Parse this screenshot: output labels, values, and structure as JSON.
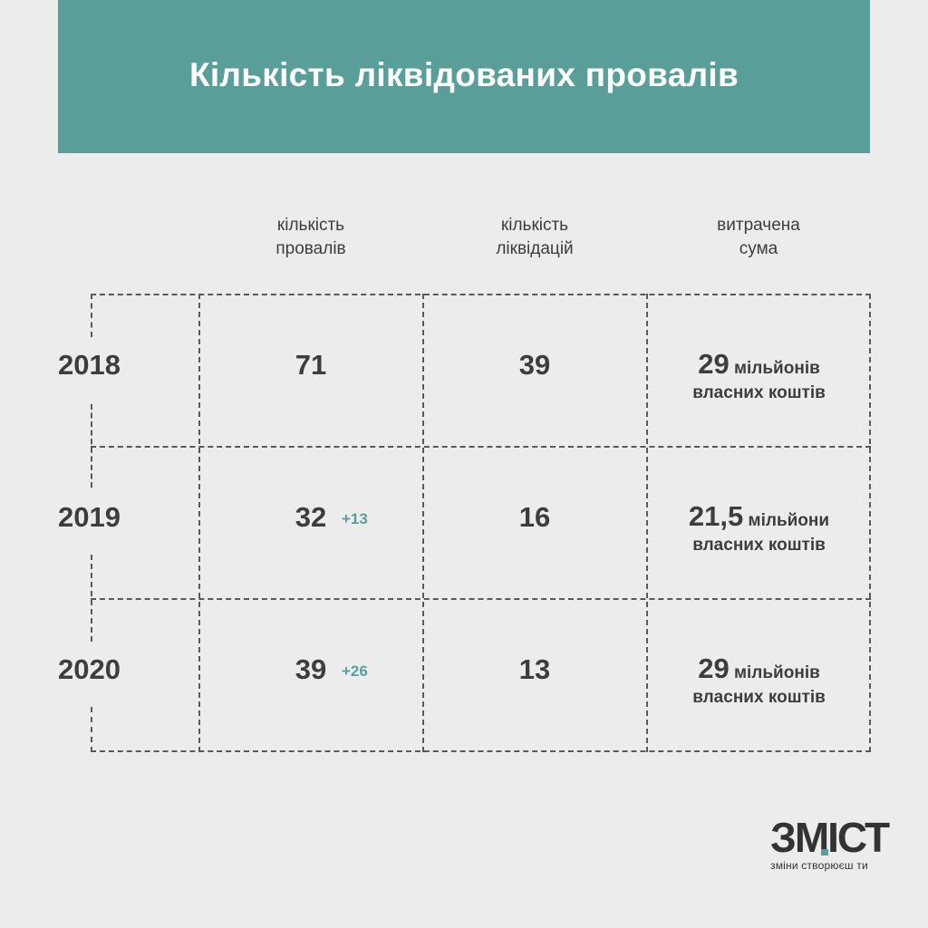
{
  "title": "Кількість ліквідованих провалів",
  "columns": [
    {
      "line1": "кількість",
      "line2": "провалів"
    },
    {
      "line1": "кількість",
      "line2": "ліквідацій"
    },
    {
      "line1": "витрачена",
      "line2": "сума"
    }
  ],
  "rows": [
    {
      "year": "2018",
      "failures": "71",
      "failures_delta": "",
      "liquidations": "39",
      "sum_value": "29",
      "sum_unit": "мільйонів",
      "sum_note": "власних коштів"
    },
    {
      "year": "2019",
      "failures": "32",
      "failures_delta": "+13",
      "liquidations": "16",
      "sum_value": "21,5",
      "sum_unit": "мільйони",
      "sum_note": "власних коштів"
    },
    {
      "year": "2020",
      "failures": "39",
      "failures_delta": "+26",
      "liquidations": "13",
      "sum_value": "29",
      "sum_unit": "мільйонів",
      "sum_note": "власних коштів"
    }
  ],
  "logo": {
    "wordmark": "ЗМІСТ",
    "tagline": "зміни створюєш ти"
  },
  "colors": {
    "accent": "#5a9e99",
    "background": "#ececec",
    "text": "#3d3d3d"
  }
}
